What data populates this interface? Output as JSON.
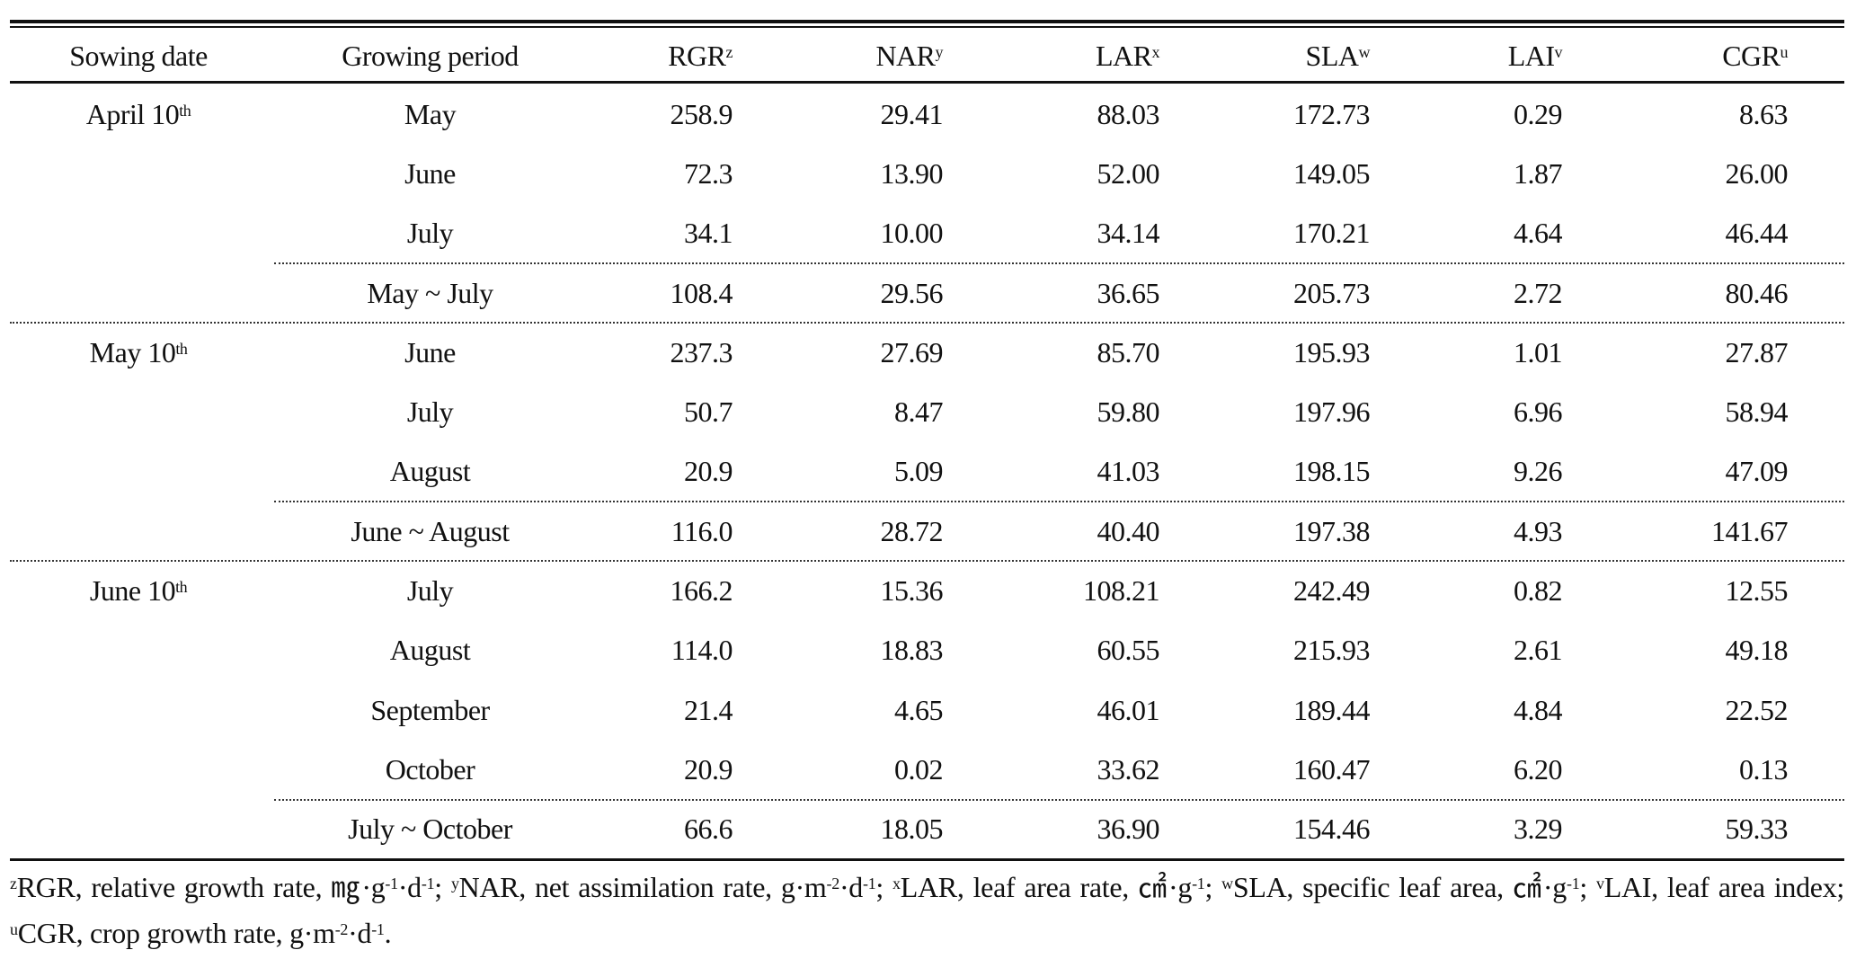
{
  "header": {
    "columns": [
      {
        "label": "Sowing date",
        "sup": ""
      },
      {
        "label": "Growing period",
        "sup": ""
      },
      {
        "label": "RGR",
        "sup": "z"
      },
      {
        "label": "NAR",
        "sup": "y"
      },
      {
        "label": "LAR",
        "sup": "x"
      },
      {
        "label": "SLA",
        "sup": "w"
      },
      {
        "label": "LAI",
        "sup": "v"
      },
      {
        "label": "CGR",
        "sup": "u"
      }
    ]
  },
  "rows": [
    {
      "sowing": "April 10",
      "sowing_sup": "th",
      "period": "May",
      "values": [
        "258.9",
        "29.41",
        "88.03",
        "172.73",
        "0.29",
        "8.63"
      ]
    },
    {
      "sowing": "",
      "sowing_sup": "",
      "period": "June",
      "values": [
        "72.3",
        "13.90",
        "52.00",
        "149.05",
        "1.87",
        "26.00"
      ]
    },
    {
      "sowing": "",
      "sowing_sup": "",
      "period": "July",
      "values": [
        "34.1",
        "10.00",
        "34.14",
        "170.21",
        "4.64",
        "46.44"
      ]
    },
    {
      "sowing": "",
      "sowing_sup": "",
      "period": "May ~ July",
      "summary": true,
      "values": [
        "108.4",
        "29.56",
        "36.65",
        "205.73",
        "2.72",
        "80.46"
      ]
    },
    {
      "sowing": "May 10",
      "sowing_sup": "th",
      "period": "June",
      "values": [
        "237.3",
        "27.69",
        "85.70",
        "195.93",
        "1.01",
        "27.87"
      ]
    },
    {
      "sowing": "",
      "sowing_sup": "",
      "period": "July",
      "values": [
        "50.7",
        "8.47",
        "59.80",
        "197.96",
        "6.96",
        "58.94"
      ]
    },
    {
      "sowing": "",
      "sowing_sup": "",
      "period": "August",
      "values": [
        "20.9",
        "5.09",
        "41.03",
        "198.15",
        "9.26",
        "47.09"
      ]
    },
    {
      "sowing": "",
      "sowing_sup": "",
      "period": "June ~ August",
      "summary": true,
      "values": [
        "116.0",
        "28.72",
        "40.40",
        "197.38",
        "4.93",
        "141.67"
      ]
    },
    {
      "sowing": "June 10",
      "sowing_sup": "th",
      "period": "July",
      "values": [
        "166.2",
        "15.36",
        "108.21",
        "242.49",
        "0.82",
        "12.55"
      ]
    },
    {
      "sowing": "",
      "sowing_sup": "",
      "period": "August",
      "values": [
        "114.0",
        "18.83",
        "60.55",
        "215.93",
        "2.61",
        "49.18"
      ]
    },
    {
      "sowing": "",
      "sowing_sup": "",
      "period": "September",
      "values": [
        "21.4",
        "4.65",
        "46.01",
        "189.44",
        "4.84",
        "22.52"
      ]
    },
    {
      "sowing": "",
      "sowing_sup": "",
      "period": "October",
      "values": [
        "20.9",
        "0.02",
        "33.62",
        "160.47",
        "6.20",
        "0.13"
      ]
    },
    {
      "sowing": "",
      "sowing_sup": "",
      "period": "July ~ October",
      "summary": true,
      "last": true,
      "values": [
        "66.6",
        "18.05",
        "36.90",
        "154.46",
        "3.29",
        "59.33"
      ]
    }
  ],
  "footnote": [
    {
      "t": "z",
      "sup": true
    },
    {
      "t": "RGR, relative growth rate, ㎎·g"
    },
    {
      "t": "-1",
      "sup": true
    },
    {
      "t": "·d"
    },
    {
      "t": "-1",
      "sup": true
    },
    {
      "t": "; "
    },
    {
      "t": "y",
      "sup": true
    },
    {
      "t": "NAR, net assimilation rate, g·m"
    },
    {
      "t": "-2",
      "sup": true
    },
    {
      "t": "·d"
    },
    {
      "t": "-1",
      "sup": true
    },
    {
      "t": "; "
    },
    {
      "t": "x",
      "sup": true
    },
    {
      "t": "LAR, leaf area rate, ㎠·g"
    },
    {
      "t": "-1",
      "sup": true
    },
    {
      "t": "; "
    },
    {
      "t": "w",
      "sup": true
    },
    {
      "t": "SLA, specific leaf area, ㎠·g"
    },
    {
      "t": "-1",
      "sup": true
    },
    {
      "t": "; "
    },
    {
      "t": "v",
      "sup": true
    },
    {
      "t": "LAI, leaf area index; "
    },
    {
      "t": "u",
      "sup": true
    },
    {
      "t": "CGR, crop growth rate, g·m"
    },
    {
      "t": "-2",
      "sup": true
    },
    {
      "t": "·d"
    },
    {
      "t": "-1",
      "sup": true
    },
    {
      "t": "."
    }
  ]
}
